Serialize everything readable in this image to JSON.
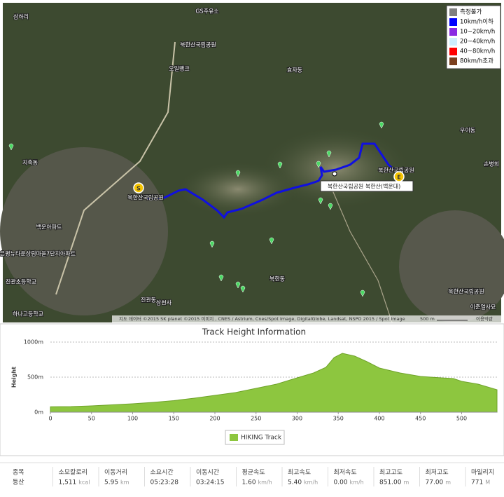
{
  "map": {
    "labels": [
      "삼하리",
      "GS주유소",
      "북한산국립공원",
      "오일뱅크",
      "효자동",
      "지축동",
      "북한산국립공원",
      "북한산국립공원 북한산(백운대)",
      "우이동",
      "손병희",
      "북한산국립공원",
      "백운아파트",
      "은평뉴타운상림마을7단지아파트",
      "진관초등학교",
      "진관동",
      "하나고등학교",
      "삼천사",
      "북한동",
      "북한산국립공원",
      "이준열사묘"
    ],
    "attribution": "지도 데이터 ©2015 SK planet ©2015 이미지 , CNES / Astrium, Cnes/Spot Image, DigitalGlobe, Landsat, NSPO 2015 / Spot Image",
    "scale": "500 m",
    "terms": "이용약관",
    "start": "S",
    "end": "E",
    "legend": [
      {
        "name": "측정불가",
        "color": "#808080"
      },
      {
        "name": "10km/h이하",
        "color": "#0000ff"
      },
      {
        "name": "10~20km/h",
        "color": "#8a2be2"
      },
      {
        "name": "20~40km/h",
        "color": "#cdeefd"
      },
      {
        "name": "40~80km/h",
        "color": "#ff0000"
      },
      {
        "name": "80km/h초과",
        "color": "#7b3f1e"
      }
    ]
  },
  "chart_data": {
    "type": "area",
    "title": "Track Height Information",
    "y_label": "Height",
    "x": [
      0,
      25,
      50,
      75,
      100,
      125,
      150,
      175,
      200,
      225,
      250,
      275,
      300,
      320,
      335,
      345,
      355,
      370,
      385,
      400,
      425,
      450,
      475,
      490,
      500,
      520,
      543
    ],
    "series": [
      {
        "name": "HIKING Track",
        "color": "#8dc63f",
        "values": [
          77,
          80,
          90,
          105,
          120,
          140,
          165,
          200,
          240,
          280,
          340,
          400,
          490,
          560,
          640,
          780,
          840,
          800,
          720,
          630,
          560,
          510,
          490,
          480,
          440,
          400,
          320
        ]
      }
    ],
    "xlim": [
      0,
      543
    ],
    "ylim": [
      0,
      1000
    ],
    "xticks": [
      0,
      50,
      100,
      150,
      200,
      250,
      300,
      350,
      400,
      450,
      500
    ],
    "yticks": [
      {
        "value": 0,
        "label": "0m"
      },
      {
        "value": 500,
        "label": "500m"
      },
      {
        "value": 1000,
        "label": "1000m"
      }
    ],
    "grid": true
  },
  "stats": [
    {
      "label": "종목",
      "value": "등산"
    },
    {
      "label": "소모칼로리",
      "value": "1,511",
      "unit": "kcal"
    },
    {
      "label": "이동거리",
      "value": "5.95",
      "unit": "km"
    },
    {
      "label": "소요시간",
      "value": "05:23:28"
    },
    {
      "label": "이동시간",
      "value": "03:24:15"
    },
    {
      "label": "평균속도",
      "value": "1.60",
      "unit": "km/h"
    },
    {
      "label": "최고속도",
      "value": "5.40",
      "unit": "km/h"
    },
    {
      "label": "최저속도",
      "value": "0.00",
      "unit": "km/h"
    },
    {
      "label": "최고고도",
      "value": "851.00",
      "unit": "m"
    },
    {
      "label": "최저고도",
      "value": "77.00",
      "unit": "m"
    },
    {
      "label": "마일리지",
      "value": "771",
      "unit": "M"
    }
  ]
}
